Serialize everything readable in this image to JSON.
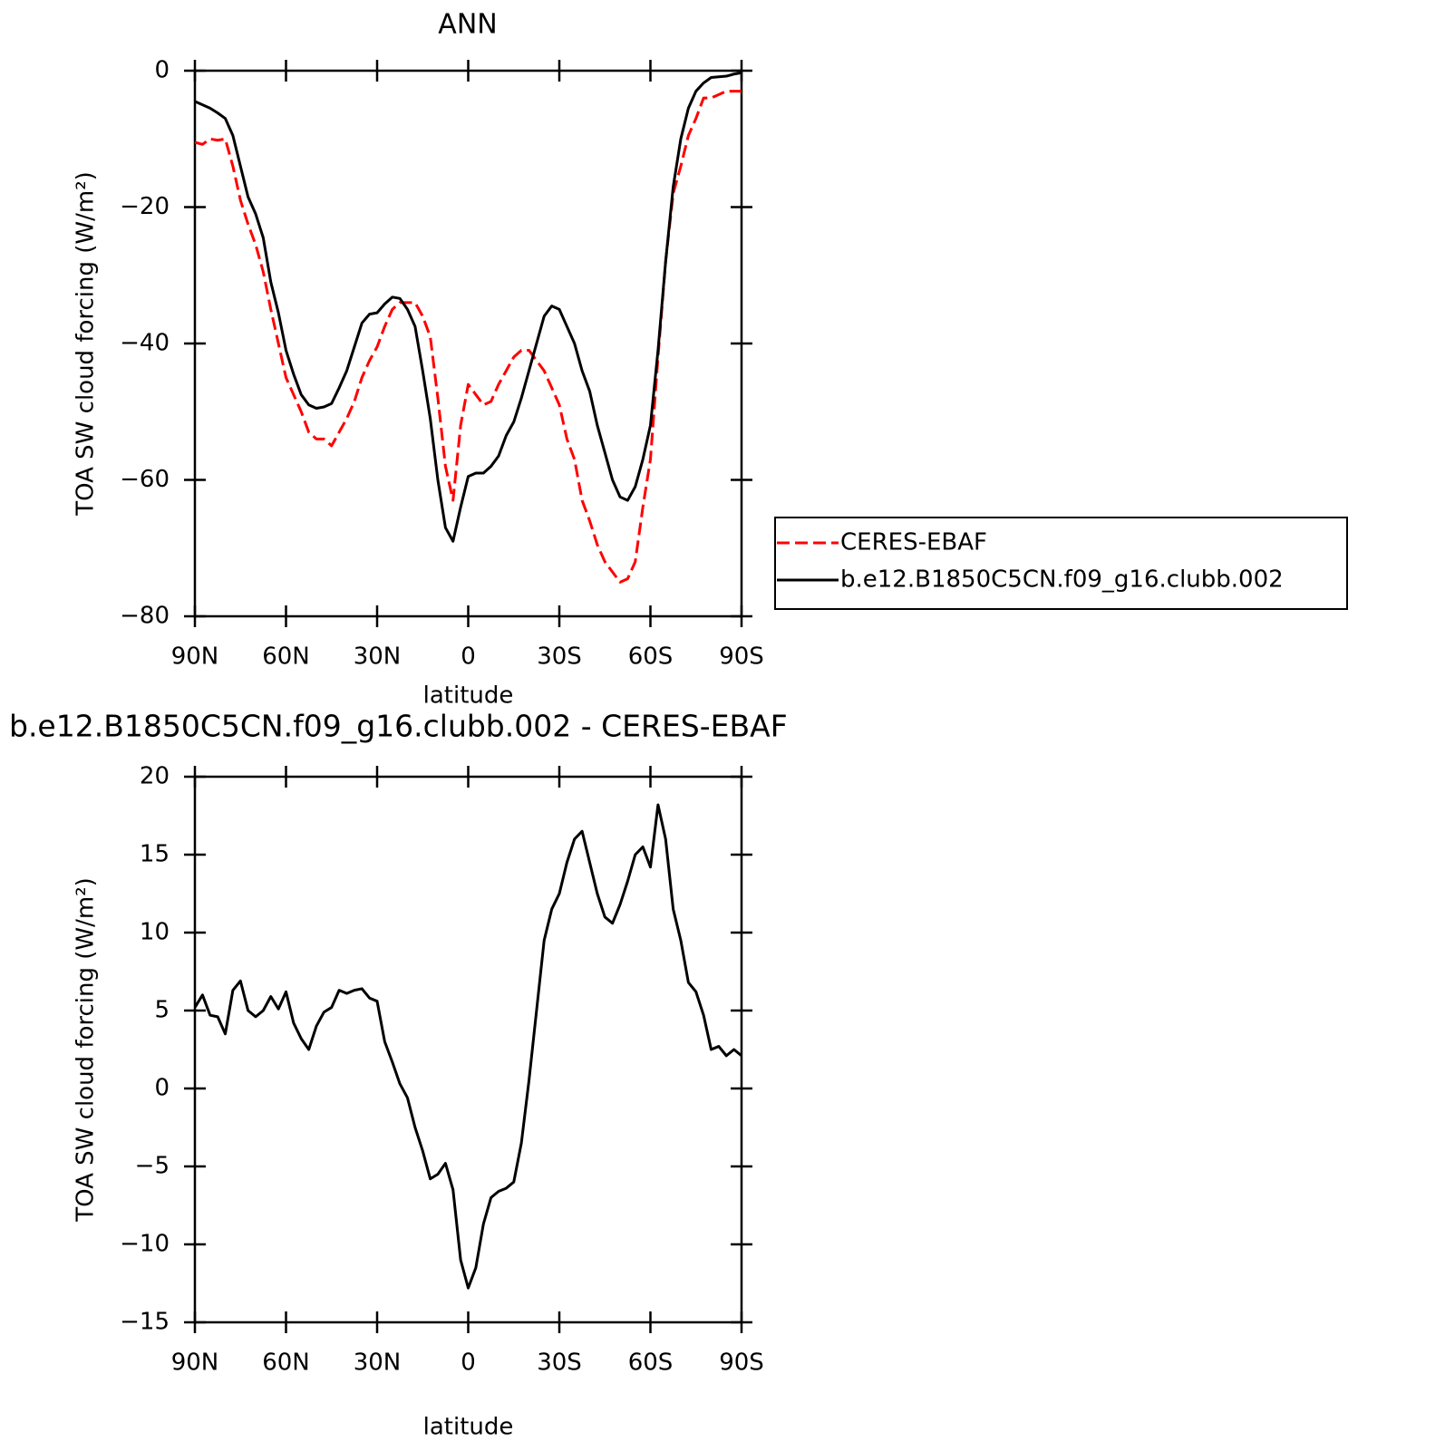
{
  "chart_data": [
    {
      "type": "line",
      "title": "ANN",
      "xlabel": "latitude",
      "ylabel": "TOA SW cloud forcing (W/m²)",
      "x": [
        90,
        87.5,
        85,
        82.5,
        80,
        77.5,
        75,
        72.5,
        70,
        67.5,
        65,
        62.5,
        60,
        57.5,
        55,
        52.5,
        50,
        47.5,
        45,
        42.5,
        40,
        37.5,
        35,
        32.5,
        30,
        27.5,
        25,
        22.5,
        20,
        17.5,
        15,
        12.5,
        10,
        7.5,
        5,
        2.5,
        0,
        -2.5,
        -5,
        -7.5,
        -10,
        -12.5,
        -15,
        -17.5,
        -20,
        -22.5,
        -25,
        -27.5,
        -30,
        -32.5,
        -35,
        -37.5,
        -40,
        -42.5,
        -45,
        -47.5,
        -50,
        -52.5,
        -55,
        -57.5,
        -60,
        -62.5,
        -65,
        -67.5,
        -70,
        -72.5,
        -75,
        -77.5,
        -80,
        -82.5,
        -85,
        -87.5,
        -90
      ],
      "xlim": [
        90,
        -90
      ],
      "xticks": [
        {
          "value": 90,
          "label": "90N"
        },
        {
          "value": 60,
          "label": "60N"
        },
        {
          "value": 30,
          "label": "30N"
        },
        0,
        {
          "value": -30,
          "label": "30S"
        },
        {
          "value": -60,
          "label": "60S"
        },
        {
          "value": -90,
          "label": "90S"
        }
      ],
      "ylim": [
        -80,
        0
      ],
      "yticks": [
        {
          "value": -80,
          "label": "−80"
        },
        {
          "value": -60,
          "label": "−60"
        },
        {
          "value": -40,
          "label": "−40"
        },
        {
          "value": -20,
          "label": "−20"
        },
        0
      ],
      "legend": "right",
      "series": [
        {
          "name": "CERES-EBAF",
          "color": "#ff0000",
          "linestyle": "dashed",
          "values": [
            -10.5,
            -10.8,
            -10,
            -10.2,
            -10,
            -14,
            -19,
            -22.5,
            -25.5,
            -29.5,
            -35,
            -40,
            -45,
            -47.5,
            -50,
            -53,
            -54,
            -54,
            -55,
            -53,
            -51,
            -48.5,
            -45,
            -42.5,
            -40.5,
            -37.5,
            -35,
            -34,
            -34,
            -34,
            -36,
            -39,
            -48,
            -58,
            -63,
            -52,
            -46,
            -47.5,
            -49,
            -48.5,
            -46,
            -44,
            -42,
            -41,
            -41,
            -42.5,
            -44,
            -46.5,
            -49,
            -54,
            -57,
            -63,
            -66,
            -69.5,
            -72,
            -73.5,
            -75,
            -74.5,
            -72,
            -64,
            -57,
            -42,
            -28,
            -18,
            -14,
            -9.5,
            -7,
            -4,
            -4,
            -3.5,
            -3,
            -3,
            -3
          ]
        },
        {
          "name": "b.e12.B1850C5CN.f09_g16.clubb.002",
          "color": "#000000",
          "linestyle": "solid",
          "values": [
            -4.5,
            -5,
            -5.5,
            -6.2,
            -7,
            -9.5,
            -14,
            -18.5,
            -21,
            -24.5,
            -31,
            -35.5,
            -41,
            -44.5,
            -47.5,
            -49,
            -49.5,
            -49.3,
            -48.8,
            -46.5,
            -44,
            -40.5,
            -37,
            -35.7,
            -35.5,
            -34.2,
            -33.2,
            -33.4,
            -35,
            -37.5,
            -44,
            -51,
            -60,
            -67,
            -69,
            -64,
            -59.5,
            -59,
            -59,
            -58,
            -56.5,
            -53.5,
            -51.5,
            -48,
            -44,
            -40,
            -36,
            -34.5,
            -35,
            -37.5,
            -40,
            -44,
            -47,
            -52,
            -56,
            -60,
            -62.5,
            -63,
            -61,
            -57,
            -52,
            -41,
            -28,
            -17,
            -10,
            -5.5,
            -3,
            -1.8,
            -1,
            -0.9,
            -0.8,
            -0.5,
            -0.3
          ]
        }
      ]
    },
    {
      "type": "line",
      "title": "b.e12.B1850C5CN.f09_g16.clubb.002 - CERES-EBAF",
      "xlabel": "latitude",
      "ylabel": "TOA SW cloud forcing (W/m²)",
      "x": [
        90,
        87.5,
        85,
        82.5,
        80,
        77.5,
        75,
        72.5,
        70,
        67.5,
        65,
        62.5,
        60,
        57.5,
        55,
        52.5,
        50,
        47.5,
        45,
        42.5,
        40,
        37.5,
        35,
        32.5,
        30,
        27.5,
        25,
        22.5,
        20,
        17.5,
        15,
        12.5,
        10,
        7.5,
        5,
        2.5,
        0,
        -2.5,
        -5,
        -7.5,
        -10,
        -12.5,
        -15,
        -17.5,
        -20,
        -22.5,
        -25,
        -27.5,
        -30,
        -32.5,
        -35,
        -37.5,
        -40,
        -42.5,
        -45,
        -47.5,
        -50,
        -52.5,
        -55,
        -57.5,
        -60,
        -62.5,
        -65,
        -67.5,
        -70,
        -72.5,
        -75,
        -77.5,
        -80,
        -82.5,
        -85,
        -87.5,
        -90
      ],
      "xlim": [
        90,
        -90
      ],
      "xticks": [
        {
          "value": 90,
          "label": "90N"
        },
        {
          "value": 60,
          "label": "60N"
        },
        {
          "value": 30,
          "label": "30N"
        },
        0,
        {
          "value": -30,
          "label": "30S"
        },
        {
          "value": -60,
          "label": "60S"
        },
        {
          "value": -90,
          "label": "90S"
        }
      ],
      "ylim": [
        -15,
        20
      ],
      "yticks": [
        {
          "value": -15,
          "label": "−15"
        },
        {
          "value": -10,
          "label": "−10"
        },
        {
          "value": -5,
          "label": "−5"
        },
        0,
        5,
        10,
        15,
        20
      ],
      "series": [
        {
          "color": "#000000",
          "linestyle": "solid",
          "values": [
            5.2,
            6,
            4.7,
            4.6,
            3.5,
            6.3,
            6.9,
            5,
            4.6,
            5,
            5.9,
            5.1,
            6.2,
            4.2,
            3.2,
            2.5,
            4,
            4.9,
            5.2,
            6.3,
            6.1,
            6.3,
            6.4,
            5.8,
            5.6,
            3,
            1.7,
            0.3,
            -0.6,
            -2.5,
            -4,
            -5.8,
            -5.5,
            -4.8,
            -6.5,
            -11,
            -12.8,
            -11.5,
            -8.7,
            -7,
            -6.6,
            -6.4,
            -6,
            -3.5,
            0.5,
            5,
            9.5,
            11.5,
            12.5,
            14.5,
            16,
            16.5,
            14.5,
            12.5,
            11,
            10.6,
            11.8,
            13.3,
            15,
            15.5,
            14.2,
            18.2,
            16,
            11.5,
            9.5,
            6.8,
            6.2,
            4.7,
            2.5,
            2.7,
            2.1,
            2.5,
            2.1
          ]
        }
      ]
    }
  ]
}
